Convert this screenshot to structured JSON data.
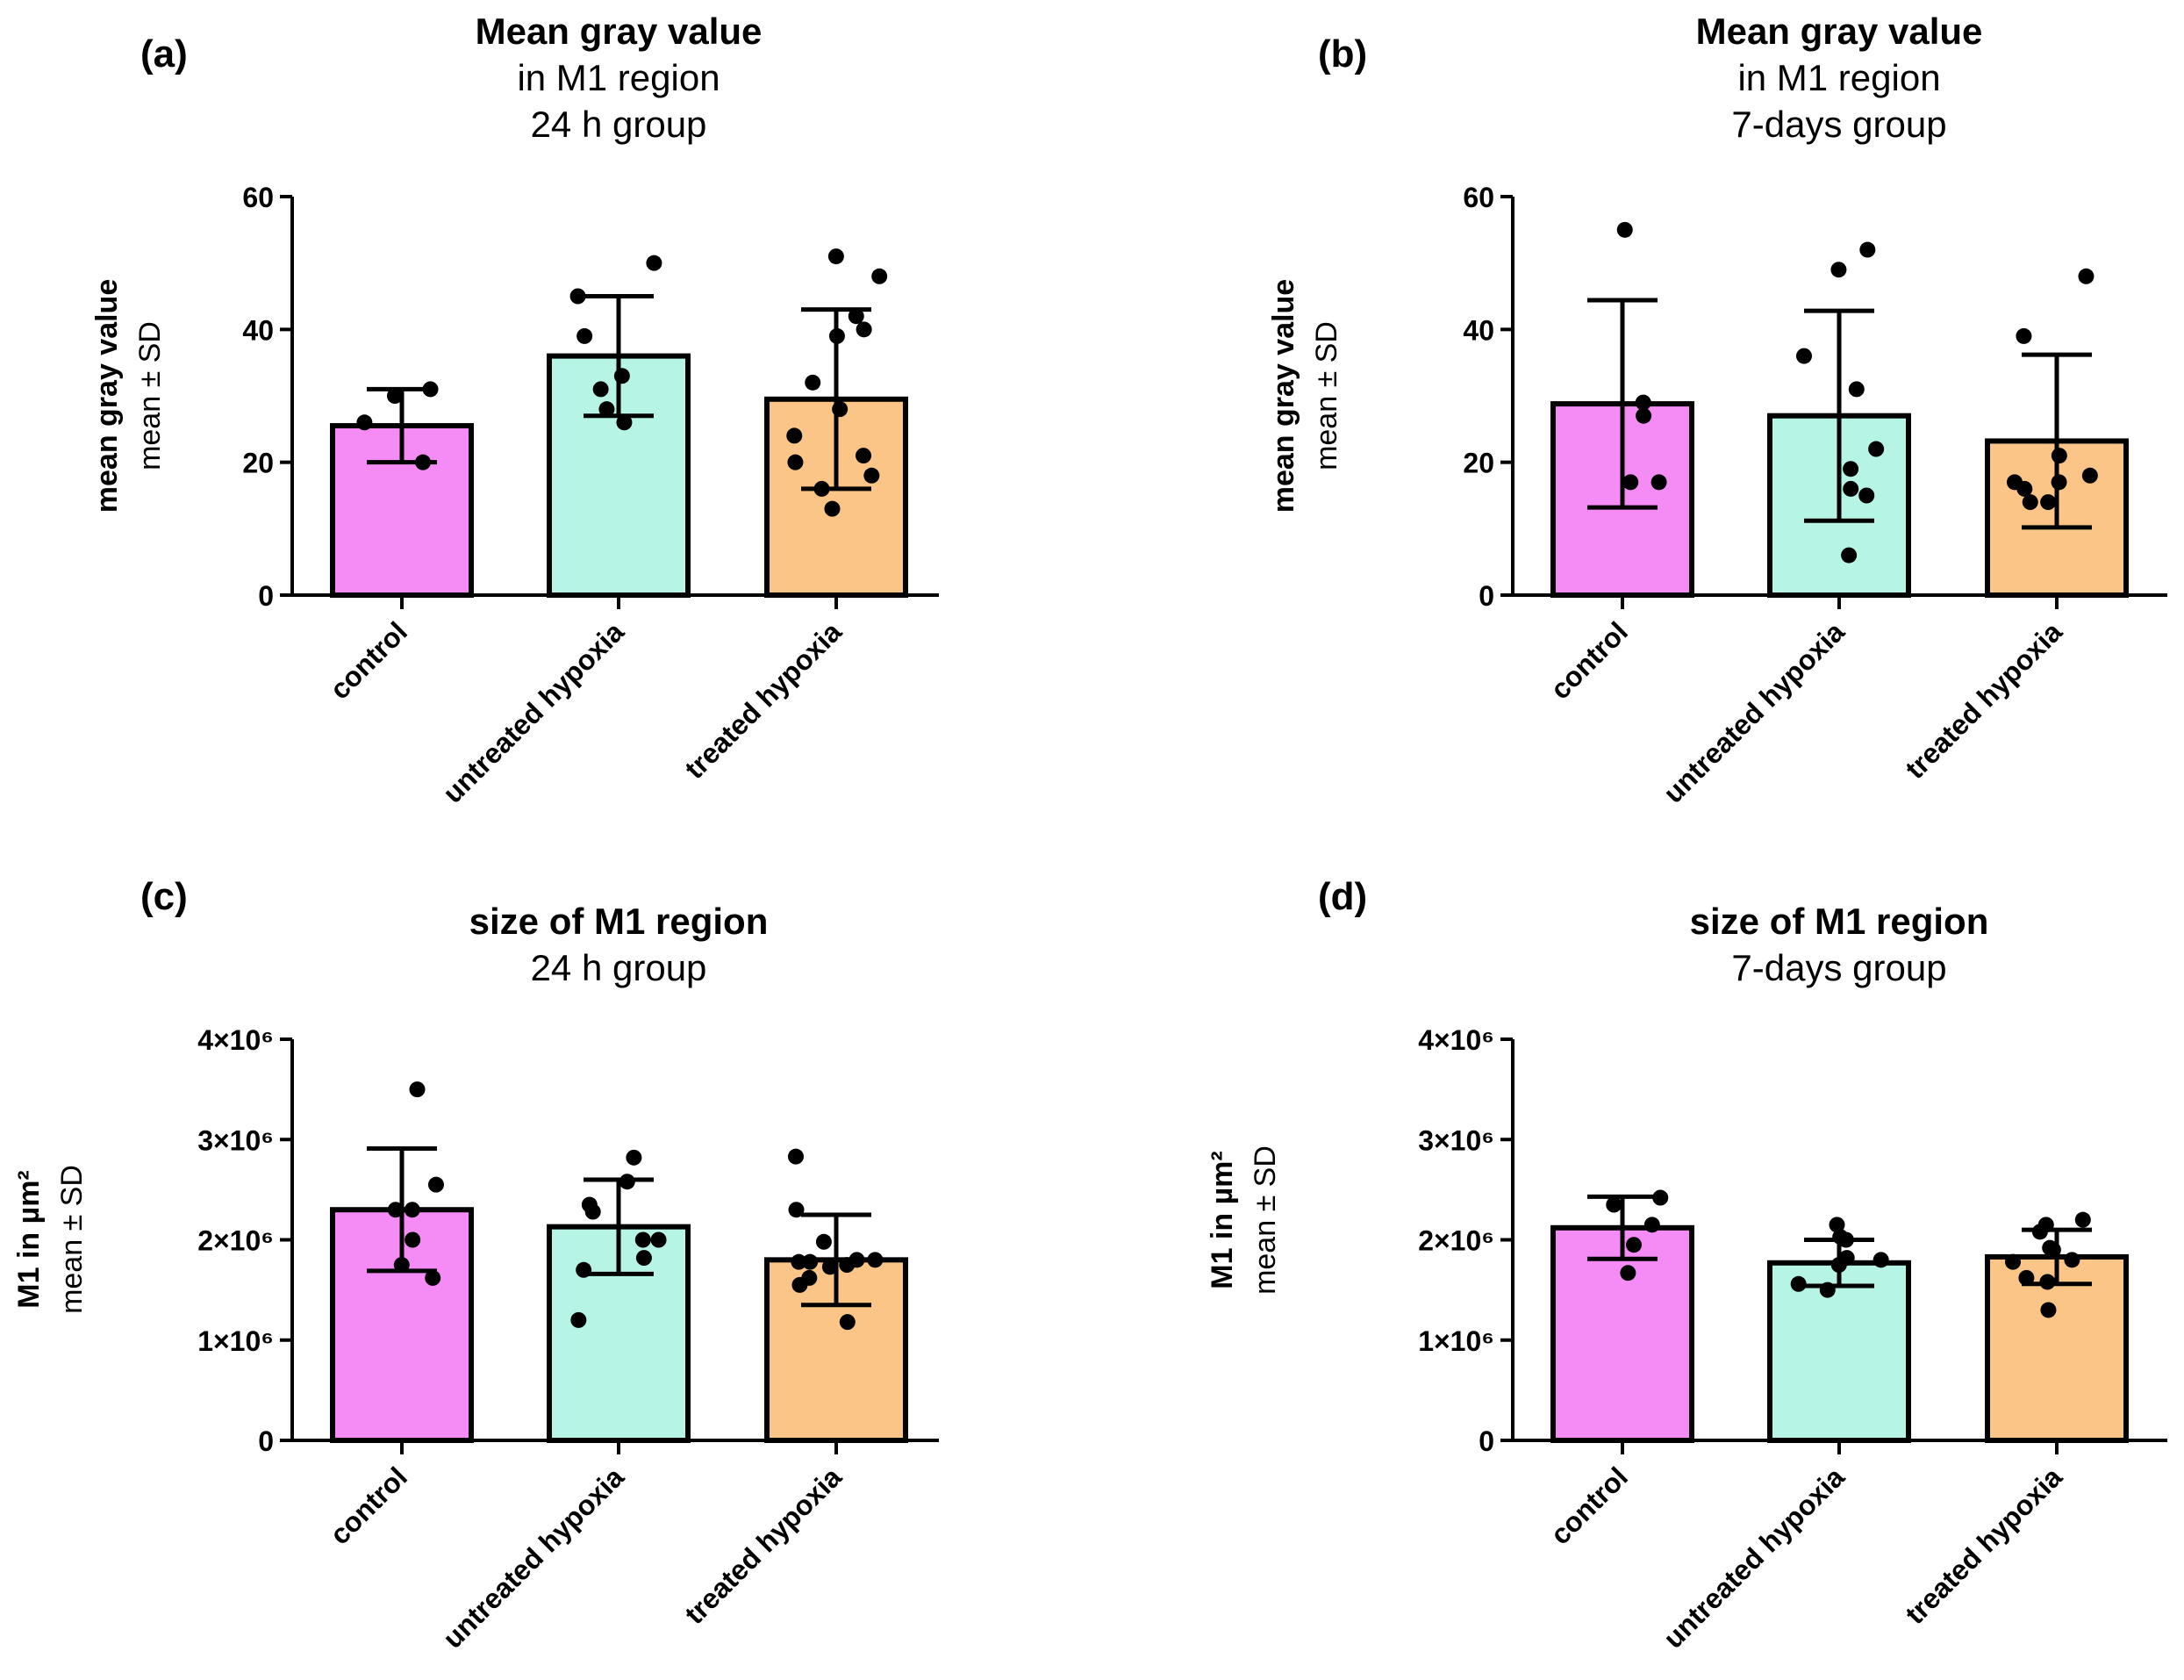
{
  "figure": {
    "colors": {
      "control": "#f58cf5",
      "untreated_hypoxia": "#b6f5e6",
      "treated_hypoxia": "#fbc587",
      "ink": "#000000"
    }
  },
  "chart_data": [
    {
      "panel": "(a)",
      "type": "bar",
      "title_lines": [
        "Mean gray value",
        "in M1 region",
        "24 h group"
      ],
      "ylabel": "mean gray value",
      "ylabel_sub": "mean ± SD",
      "ylim": [
        0,
        60
      ],
      "yticks": [
        0,
        20,
        40,
        60
      ],
      "ytick_labels": [
        "0",
        "20",
        "40",
        "60"
      ],
      "categories": [
        "control",
        "untreated hypoxia",
        "treated hypoxia"
      ],
      "values": [
        25.5,
        36,
        29.5
      ],
      "sd": [
        5.5,
        9,
        13.5
      ],
      "points": [
        [
          20,
          26,
          30,
          31
        ],
        [
          26,
          28,
          31,
          33,
          39,
          45,
          50
        ],
        [
          13,
          16,
          18,
          20,
          21,
          24,
          28,
          32,
          39,
          40,
          42,
          48,
          51
        ]
      ]
    },
    {
      "panel": "(b)",
      "type": "bar",
      "title_lines": [
        "Mean gray value",
        "in M1 region",
        "7-days group"
      ],
      "ylabel": "mean gray value",
      "ylabel_sub": "mean ± SD",
      "ylim": [
        0,
        60
      ],
      "yticks": [
        0,
        20,
        40,
        60
      ],
      "ytick_labels": [
        "0",
        "20",
        "40",
        "60"
      ],
      "categories": [
        "control",
        "untreated hypoxia",
        "treated hypoxia"
      ],
      "values": [
        28.8,
        27,
        23.2
      ],
      "sd": [
        15.6,
        15.8,
        13
      ],
      "points": [
        [
          17,
          17,
          27,
          29,
          55
        ],
        [
          6,
          15,
          16,
          19,
          22,
          31,
          36,
          49,
          52
        ],
        [
          14,
          14,
          16,
          17,
          17,
          18,
          21,
          39,
          48
        ]
      ]
    },
    {
      "panel": "(c)",
      "type": "bar",
      "title_lines": [
        "size of M1 region",
        "24 h group"
      ],
      "ylabel": "M1 in µm²",
      "ylabel_sub": "mean ± SD",
      "ylim": [
        0,
        4000000
      ],
      "yticks": [
        0,
        1000000,
        2000000,
        3000000,
        4000000
      ],
      "ytick_labels": [
        "0",
        "1×10⁶",
        "2×10⁶",
        "3×10⁶",
        "4×10⁶"
      ],
      "categories": [
        "control",
        "untreated hypoxia",
        "treated hypoxia"
      ],
      "values": [
        2300000,
        2130000,
        1800000
      ],
      "sd": [
        610000,
        470000,
        450000
      ],
      "points": [
        [
          1620000,
          1750000,
          2000000,
          2300000,
          2300000,
          2550000,
          3500000
        ],
        [
          1200000,
          1700000,
          1820000,
          2000000,
          2000000,
          2280000,
          2350000,
          2580000,
          2820000
        ],
        [
          1180000,
          1550000,
          1620000,
          1730000,
          1750000,
          1780000,
          1780000,
          1800000,
          1800000,
          1980000,
          2300000,
          2830000
        ]
      ]
    },
    {
      "panel": "(d)",
      "type": "bar",
      "title_lines": [
        "size of M1 region",
        "7-days group"
      ],
      "ylabel": "M1 in µm²",
      "ylabel_sub": "mean ± SD",
      "ylim": [
        0,
        4000000
      ],
      "yticks": [
        0,
        1000000,
        2000000,
        3000000,
        4000000
      ],
      "ytick_labels": [
        "0",
        "1×10⁶",
        "2×10⁶",
        "3×10⁶",
        "4×10⁶"
      ],
      "categories": [
        "control",
        "untreated hypoxia",
        "treated hypoxia"
      ],
      "values": [
        2120000,
        1770000,
        1830000
      ],
      "sd": [
        310000,
        230000,
        270000
      ],
      "points": [
        [
          1670000,
          1950000,
          2150000,
          2350000,
          2420000
        ],
        [
          1500000,
          1560000,
          1750000,
          1800000,
          1820000,
          2000000,
          2030000,
          2150000
        ],
        [
          1300000,
          1580000,
          1620000,
          1780000,
          1800000,
          1900000,
          1920000,
          2080000,
          2150000,
          2200000
        ]
      ]
    }
  ]
}
